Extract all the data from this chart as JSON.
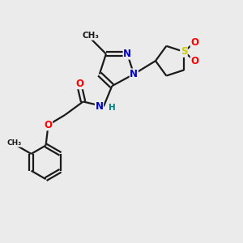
{
  "bg_color": "#ebebeb",
  "bond_color": "#1a1a1a",
  "bond_width": 1.6,
  "atom_colors": {
    "N": "#0000cc",
    "O": "#ff0000",
    "S": "#cccc00",
    "H": "#008080",
    "C": "#1a1a1a"
  },
  "font_size": 8.5,
  "fig_size": [
    3.0,
    3.0
  ],
  "dpi": 100,
  "xlim": [
    0,
    10
  ],
  "ylim": [
    0,
    10
  ]
}
